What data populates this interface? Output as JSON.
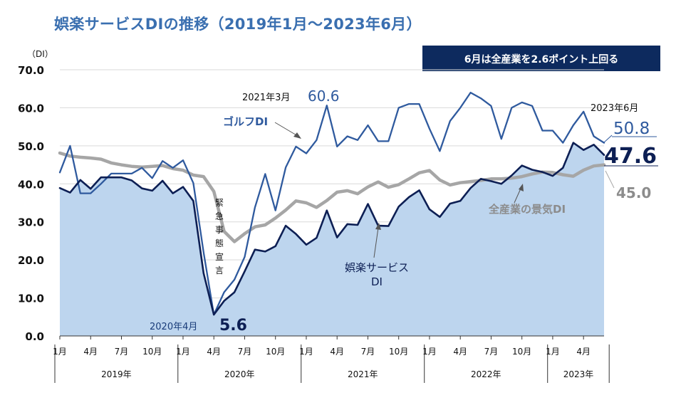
{
  "title": "娯楽サービスDIの推移（2019年1月～2023年6月）",
  "banner": "6月は全産業を2.6ポイント上回る",
  "colors": {
    "title": "#3a6fb0",
    "banner_bg": "#0d2a5e",
    "entertainment": "#0d1f54",
    "golf": "#2f5a9e",
    "all_industry": "#a6a6a6",
    "area_fill": "#bdd5ee"
  },
  "chart_data": {
    "type": "line",
    "yunit": "（DI）",
    "ylim": [
      0,
      70
    ],
    "yticks": [
      "70.0",
      "60.0",
      "50.0",
      "40.0",
      "30.0",
      "20.0",
      "10.0",
      "0.0"
    ],
    "ytick_values": [
      70,
      60,
      50,
      40,
      30,
      20,
      10,
      0
    ],
    "xtick_labels": [
      {
        "i": 0,
        "label": "1月"
      },
      {
        "i": 3,
        "label": "4月"
      },
      {
        "i": 6,
        "label": "7月"
      },
      {
        "i": 9,
        "label": "10月"
      },
      {
        "i": 12,
        "label": "1月"
      },
      {
        "i": 15,
        "label": "4月"
      },
      {
        "i": 18,
        "label": "7月"
      },
      {
        "i": 21,
        "label": "10月"
      },
      {
        "i": 24,
        "label": "1月"
      },
      {
        "i": 27,
        "label": "4月"
      },
      {
        "i": 30,
        "label": "7月"
      },
      {
        "i": 33,
        "label": "10月"
      },
      {
        "i": 36,
        "label": "1月"
      },
      {
        "i": 39,
        "label": "4月"
      },
      {
        "i": 42,
        "label": "7月"
      },
      {
        "i": 45,
        "label": "10月"
      },
      {
        "i": 48,
        "label": "1月"
      },
      {
        "i": 51,
        "label": "4月"
      }
    ],
    "years": [
      {
        "label": "2019年",
        "start": 0,
        "end": 11
      },
      {
        "label": "2020年",
        "start": 12,
        "end": 23
      },
      {
        "label": "2021年",
        "start": 24,
        "end": 35
      },
      {
        "label": "2022年",
        "start": 36,
        "end": 47
      },
      {
        "label": "2023年",
        "start": 48,
        "end": 53
      }
    ],
    "series": [
      {
        "key": "all_industry",
        "values": [
          48.1,
          47.3,
          47.0,
          46.8,
          46.5,
          45.5,
          45.0,
          44.6,
          44.4,
          44.6,
          44.8,
          44.0,
          43.6,
          42.3,
          41.9,
          38.0,
          27.5,
          24.8,
          26.9,
          28.7,
          29.2,
          31.0,
          33.1,
          35.5,
          35.0,
          33.8,
          35.6,
          37.8,
          38.2,
          37.4,
          39.2,
          40.5,
          39.1,
          39.8,
          41.3,
          42.9,
          43.5,
          41.0,
          39.7,
          40.3,
          40.6,
          40.9,
          41.3,
          41.3,
          41.5,
          41.9,
          42.6,
          43.1,
          43.0,
          42.4,
          42.0,
          43.6,
          44.7,
          45.0
        ]
      },
      {
        "key": "golf",
        "values": [
          43.0,
          50.0,
          37.5,
          37.5,
          40.0,
          42.7,
          42.7,
          42.7,
          44.2,
          41.5,
          46.0,
          44.2,
          46.2,
          40.2,
          22.0,
          5.6,
          11.5,
          14.8,
          20.8,
          33.8,
          42.6,
          33.0,
          44.3,
          49.8,
          48.0,
          51.5,
          60.6,
          49.8,
          52.5,
          51.5,
          55.4,
          51.2,
          51.2,
          60.0,
          61.0,
          61.0,
          54.5,
          48.6,
          56.5,
          60.0,
          64.0,
          62.5,
          60.5,
          51.8,
          60.0,
          61.4,
          60.5,
          54.0,
          54.0,
          50.8,
          55.4,
          59.0,
          52.5,
          50.8
        ]
      },
      {
        "key": "entertainment",
        "values": [
          38.9,
          37.7,
          41.0,
          38.7,
          41.7,
          41.7,
          41.7,
          40.9,
          38.8,
          38.2,
          40.8,
          37.5,
          39.2,
          35.5,
          16.5,
          5.6,
          9.2,
          11.5,
          17.0,
          22.7,
          22.2,
          23.6,
          29.0,
          26.8,
          24.0,
          25.8,
          33.0,
          25.9,
          29.4,
          29.2,
          34.7,
          29.0,
          28.9,
          34.0,
          36.5,
          38.3,
          33.3,
          31.3,
          34.8,
          35.5,
          38.9,
          41.3,
          40.7,
          40.0,
          42.2,
          44.8,
          43.7,
          43.1,
          42.1,
          44.2,
          50.8,
          48.9,
          50.3,
          47.6
        ]
      }
    ],
    "annotations": {
      "golf_label": "ゴルフDI",
      "entertainment_label_1": "娯楽サービス",
      "entertainment_label_2": "DI",
      "all_label": "全産業の景気DI",
      "emergency": [
        "緊",
        "急",
        "事",
        "態",
        "宣",
        "言"
      ],
      "low_date": "2020年4月",
      "low_value": "5.6",
      "peak_date": "2021年3月",
      "peak_value": "60.6",
      "latest_date": "2023年6月",
      "latest_golf": "50.8",
      "latest_entertainment": "47.6",
      "latest_all": "45.0"
    }
  }
}
